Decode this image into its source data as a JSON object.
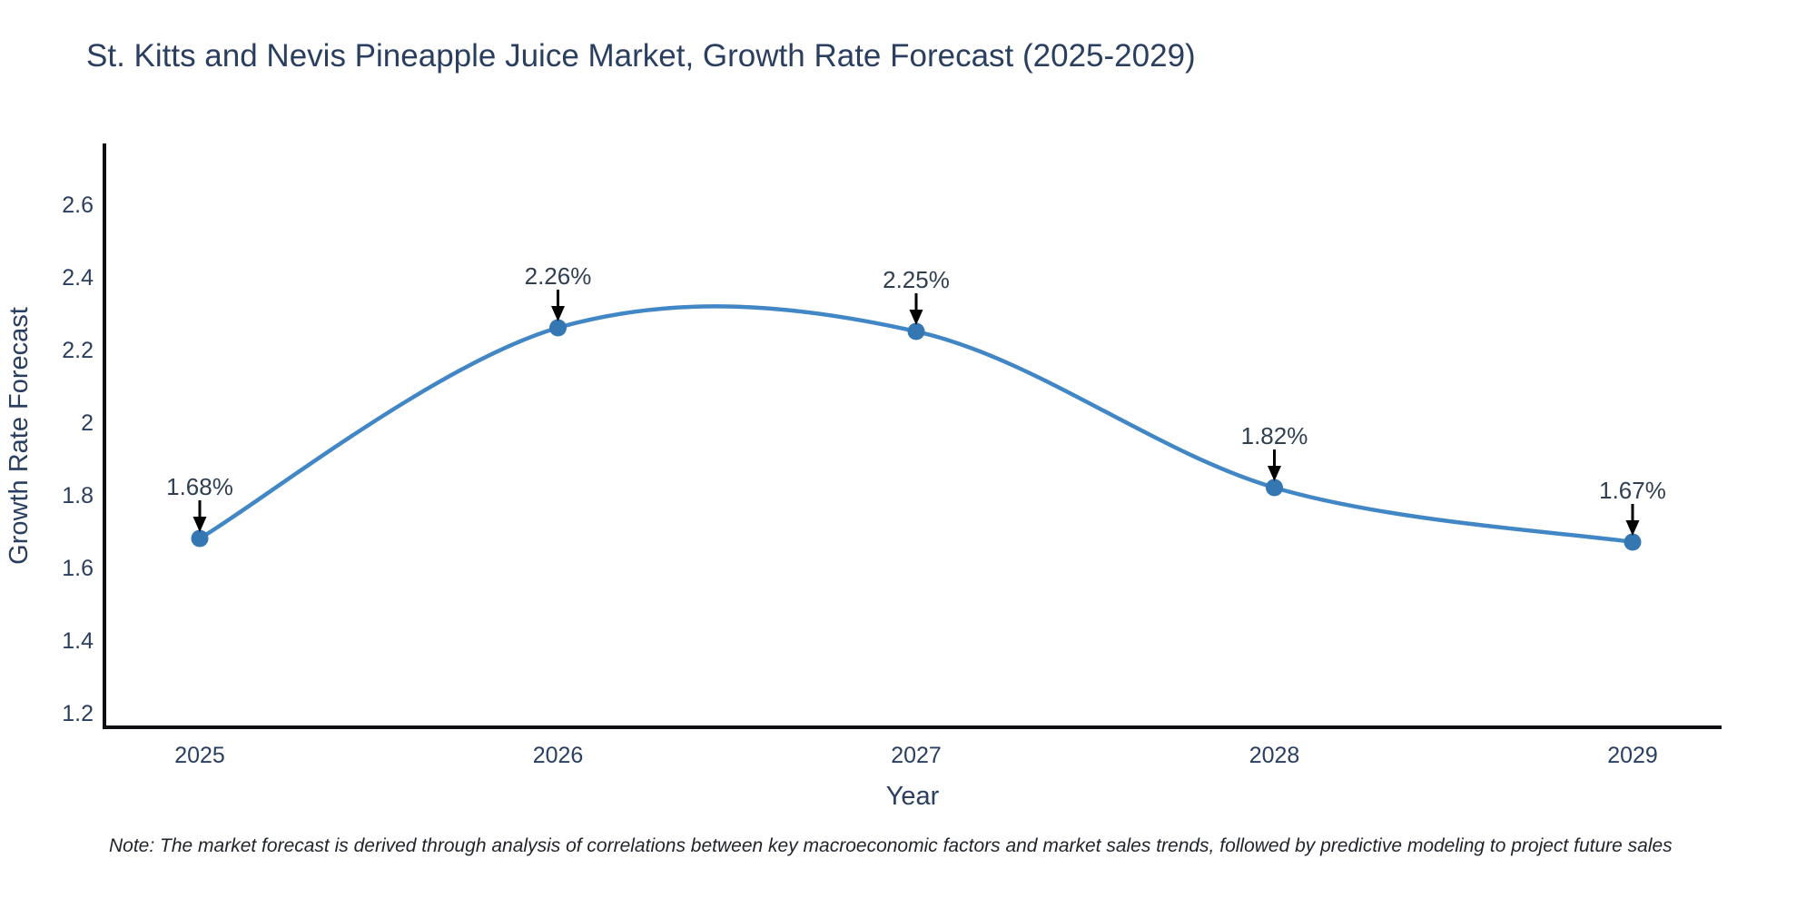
{
  "page": {
    "note": "Note: The market forecast is derived through analysis of correlations between key macroeconomic factors and market sales trends, followed by predictive modeling to project future sales"
  },
  "chart_data": {
    "type": "line",
    "title": "St. Kitts and Nevis Pineapple Juice Market, Growth Rate Forecast (2025-2029)",
    "xlabel": "Year",
    "ylabel": "Growth Rate Forecast",
    "categories": [
      "2025",
      "2026",
      "2027",
      "2028",
      "2029"
    ],
    "series": [
      {
        "name": "Growth Rate Forecast",
        "values": [
          1.68,
          2.26,
          2.25,
          1.82,
          1.67
        ]
      }
    ],
    "point_labels": [
      "1.68%",
      "2.26%",
      "2.25%",
      "1.82%",
      "1.67%"
    ],
    "yticks": [
      1.2,
      1.4,
      1.6,
      1.8,
      2.0,
      2.2,
      2.4,
      2.6
    ],
    "ylim": [
      1.16,
      2.77
    ],
    "grid": false,
    "legend": "none",
    "curve": "spline",
    "line_color": "#4186c5",
    "marker_color": "#3577b3",
    "arrow_color": "#000000",
    "text_color": "#2a3f5f",
    "background_color": "#ffffff"
  }
}
